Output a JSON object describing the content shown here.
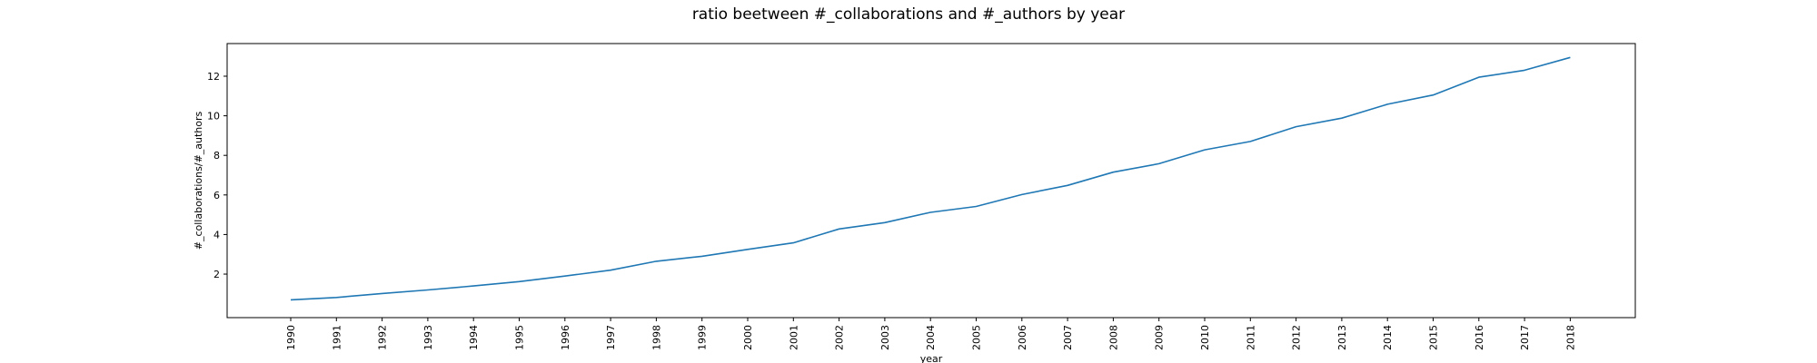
{
  "chart_data": {
    "type": "line",
    "title": "ratio beetween #_collaborations and #_authors by year",
    "xlabel": "year",
    "ylabel": "#_collaborations/#_authors",
    "x": [
      "1990",
      "1991",
      "1992",
      "1993",
      "1994",
      "1995",
      "1996",
      "1997",
      "1998",
      "1999",
      "2000",
      "2001",
      "2002",
      "2003",
      "2004",
      "2005",
      "2006",
      "2007",
      "2008",
      "2009",
      "2010",
      "2011",
      "2012",
      "2013",
      "2014",
      "2015",
      "2016",
      "2017",
      "2018"
    ],
    "series": [
      {
        "values": [
          0.7,
          0.82,
          1.02,
          1.2,
          1.4,
          1.62,
          1.9,
          2.2,
          2.65,
          2.9,
          3.25,
          3.58,
          4.28,
          4.6,
          5.12,
          5.42,
          6.02,
          6.48,
          7.15,
          7.58,
          8.28,
          8.7,
          9.45,
          9.88,
          10.58,
          11.05,
          11.95,
          12.3,
          12.95
        ]
      }
    ],
    "yticks": [
      2,
      4,
      6,
      8,
      10,
      12
    ],
    "ylim": [
      -0.2,
      13.65
    ],
    "grid": false,
    "legend": "none",
    "line_color": "#1f77b4"
  }
}
